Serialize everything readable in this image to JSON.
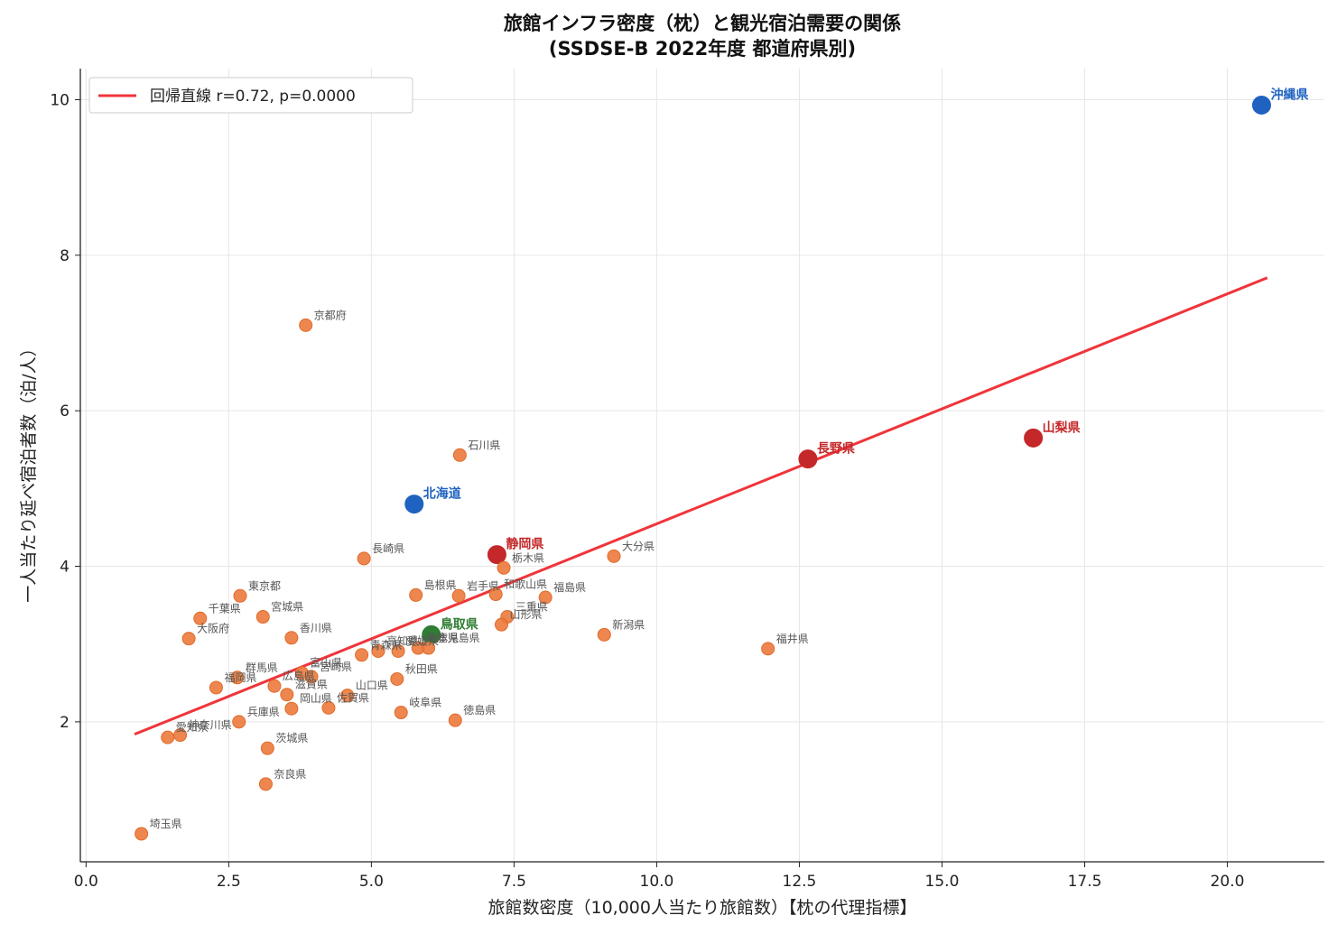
{
  "chart_data": {
    "type": "scatter",
    "title": "旅館インフラ密度（枕）と観光宿泊需要の関係",
    "subtitle": "(SSDSE-B 2022年度 都道府県別)",
    "xlabel": "旅館数密度（10,000人当たり旅館数）【枕の代理指標】",
    "ylabel": "一人当たり延べ宿泊者数（泊/人）",
    "xlim": [
      -0.1,
      21.7
    ],
    "ylim": [
      0.2,
      10.4
    ],
    "xticks": [
      0.0,
      2.5,
      5.0,
      7.5,
      10.0,
      12.5,
      15.0,
      17.5,
      20.0
    ],
    "xtick_labels": [
      "0.0",
      "2.5",
      "5.0",
      "7.5",
      "10.0",
      "12.5",
      "15.0",
      "17.5",
      "20.0"
    ],
    "yticks": [
      2,
      4,
      6,
      8,
      10
    ],
    "ytick_labels": [
      "2",
      "4",
      "6",
      "8",
      "10"
    ],
    "grid": true,
    "legend": {
      "position": "top-left",
      "entries": [
        "回帰直線  r=0.72, p=0.0000"
      ]
    },
    "regression_line": {
      "x": [
        0.85,
        20.7
      ],
      "y": [
        1.84,
        7.71
      ],
      "color": "#f0343a"
    },
    "colors": {
      "default": "#ec7a3c",
      "blue": "#1f62c0",
      "red": "#c4282a",
      "green": "#2e7d32"
    },
    "points": [
      {
        "name": "沖縄県",
        "x": 20.6,
        "y": 9.93,
        "highlight": "blue"
      },
      {
        "name": "北海道",
        "x": 5.75,
        "y": 4.8,
        "highlight": "blue"
      },
      {
        "name": "山梨県",
        "x": 16.6,
        "y": 5.65,
        "highlight": "red"
      },
      {
        "name": "長野県",
        "x": 12.65,
        "y": 5.38,
        "highlight": "red"
      },
      {
        "name": "静岡県",
        "x": 7.2,
        "y": 4.15,
        "highlight": "red"
      },
      {
        "name": "鳥取県",
        "x": 6.05,
        "y": 3.12,
        "highlight": "green"
      },
      {
        "name": "京都府",
        "x": 3.85,
        "y": 7.1
      },
      {
        "name": "石川県",
        "x": 6.55,
        "y": 5.43
      },
      {
        "name": "長崎県",
        "x": 4.87,
        "y": 4.1
      },
      {
        "name": "栃木県",
        "x": 7.32,
        "y": 3.98
      },
      {
        "name": "大分県",
        "x": 9.25,
        "y": 4.13
      },
      {
        "name": "島根県",
        "x": 5.78,
        "y": 3.63
      },
      {
        "name": "岩手県",
        "x": 6.53,
        "y": 3.62
      },
      {
        "name": "和歌山県",
        "x": 7.18,
        "y": 3.64
      },
      {
        "name": "福島県",
        "x": 8.05,
        "y": 3.6
      },
      {
        "name": "三重県",
        "x": 7.38,
        "y": 3.35
      },
      {
        "name": "山形県",
        "x": 7.28,
        "y": 3.25
      },
      {
        "name": "新潟県",
        "x": 9.08,
        "y": 3.12
      },
      {
        "name": "福井県",
        "x": 11.95,
        "y": 2.94
      },
      {
        "name": "東京都",
        "x": 2.7,
        "y": 3.62
      },
      {
        "name": "千葉県",
        "x": 2.0,
        "y": 3.33
      },
      {
        "name": "宮城県",
        "x": 3.1,
        "y": 3.35
      },
      {
        "name": "大阪府",
        "x": 1.8,
        "y": 3.07
      },
      {
        "name": "香川県",
        "x": 3.6,
        "y": 3.08
      },
      {
        "name": "青森県",
        "x": 4.83,
        "y": 2.86
      },
      {
        "name": "高知県",
        "x": 5.12,
        "y": 2.91
      },
      {
        "name": "愛媛県",
        "x": 5.47,
        "y": 2.91
      },
      {
        "name": "熊本県",
        "x": 5.82,
        "y": 2.95
      },
      {
        "name": "徳島県A",
        "label": "鹿児島県",
        "x": 6.0,
        "y": 2.95
      },
      {
        "name": "秋田県",
        "x": 5.45,
        "y": 2.55
      },
      {
        "name": "広島県",
        "x": 3.3,
        "y": 2.46
      },
      {
        "name": "富山県",
        "x": 3.78,
        "y": 2.63
      },
      {
        "name": "宮崎県",
        "x": 3.95,
        "y": 2.58
      },
      {
        "name": "福岡県",
        "x": 2.28,
        "y": 2.44
      },
      {
        "name": "群馬県",
        "x": 2.65,
        "y": 2.57
      },
      {
        "name": "滋賀県",
        "x": 3.52,
        "y": 2.35
      },
      {
        "name": "山口県",
        "x": 4.58,
        "y": 2.34
      },
      {
        "name": "岡山県",
        "x": 3.6,
        "y": 2.17
      },
      {
        "name": "佐賀県",
        "x": 4.25,
        "y": 2.18
      },
      {
        "name": "岐阜県",
        "x": 5.52,
        "y": 2.12
      },
      {
        "name": "徳島県",
        "x": 6.47,
        "y": 2.02
      },
      {
        "name": "兵庫県",
        "x": 2.68,
        "y": 2.0
      },
      {
        "name": "愛知県",
        "x": 1.43,
        "y": 1.8
      },
      {
        "name": "神奈川県",
        "x": 1.65,
        "y": 1.83
      },
      {
        "name": "茨城県",
        "x": 3.18,
        "y": 1.66
      },
      {
        "name": "奈良県",
        "x": 3.15,
        "y": 1.2
      },
      {
        "name": "埼玉県",
        "x": 0.97,
        "y": 0.56
      }
    ]
  }
}
